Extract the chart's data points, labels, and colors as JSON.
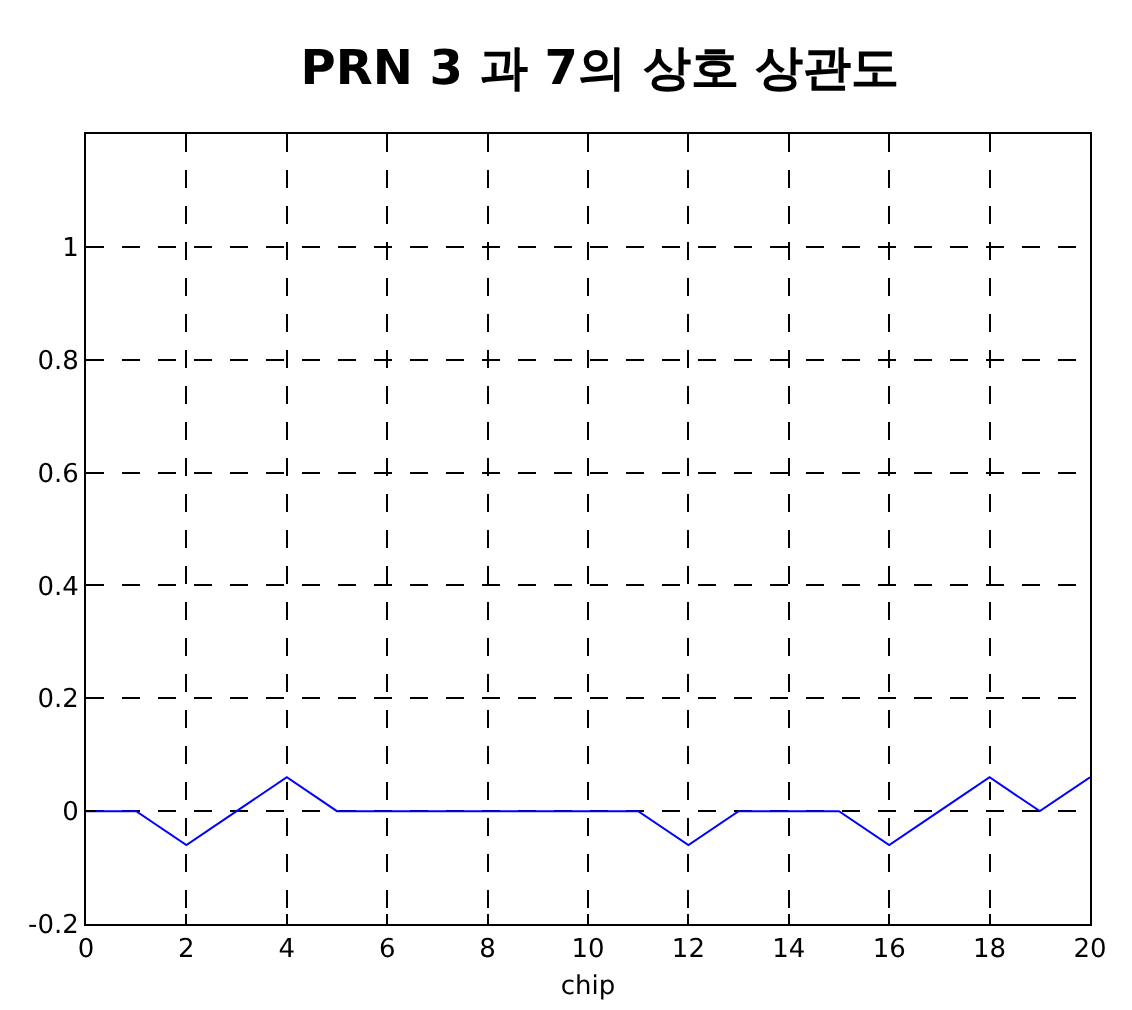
{
  "chart_data": {
    "type": "line",
    "title": "PRN 3 과 7의 상호 상관도",
    "xlabel": "chip",
    "x": [
      0,
      1,
      2,
      3,
      4,
      5,
      6,
      7,
      8,
      9,
      10,
      11,
      12,
      13,
      14,
      15,
      16,
      17,
      18,
      19,
      20
    ],
    "series": [
      {
        "color": "#0000ff",
        "values": [
          0,
          0,
          -0.06,
          0,
          0.06,
          0,
          0,
          0,
          0,
          0,
          0,
          0,
          -0.06,
          0,
          0,
          0,
          -0.06,
          0,
          0.06,
          0,
          0.06
        ]
      }
    ],
    "xlim": [
      0,
      20
    ],
    "xticks": [
      0,
      2,
      4,
      6,
      8,
      10,
      12,
      14,
      16,
      18,
      20
    ],
    "ylim": [
      -0.2,
      1.2
    ],
    "yticks": [
      -0.2,
      0,
      0.2,
      0.4,
      0.6,
      0.8,
      1
    ],
    "grid": true,
    "marker": "none",
    "line_style": "solid"
  }
}
